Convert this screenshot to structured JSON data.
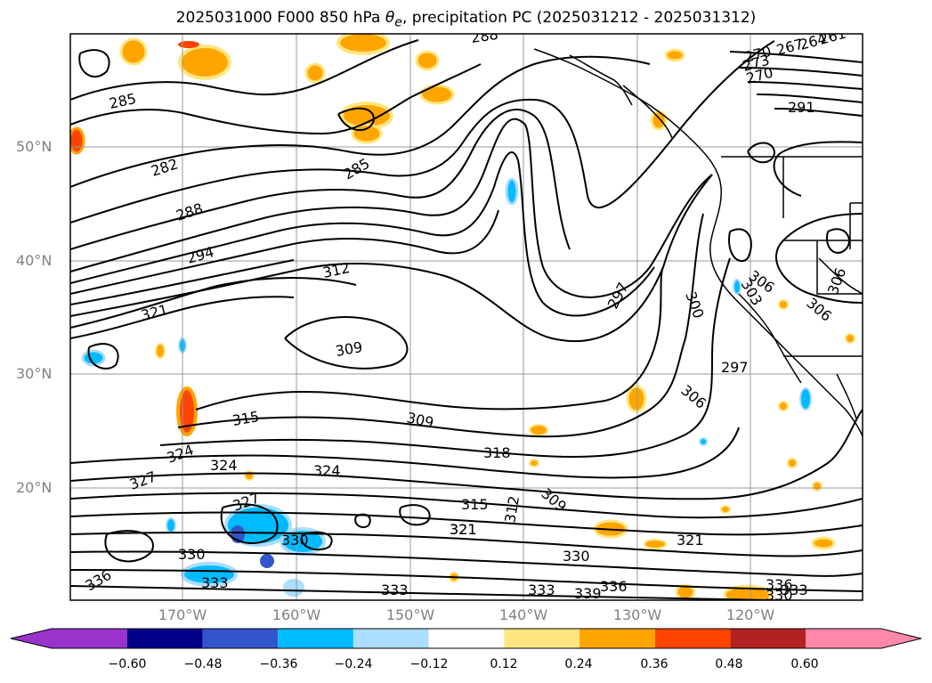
{
  "title_main": "2025031000 F000 850 hPa ",
  "title_symbol": "θ",
  "title_sub": "e",
  "title_rest": ", precipitation PC (2025031212 - 2025031312)",
  "lat_labels": [
    "50°N",
    "40°N",
    "30°N",
    "20°N"
  ],
  "lon_labels": [
    "170°W",
    "160°W",
    "150°W",
    "140°W",
    "130°W",
    "120°W"
  ],
  "contour_labels": [
    "285",
    "282",
    "288",
    "294",
    "285",
    "288",
    "312",
    "321",
    "309",
    "315",
    "309",
    "318",
    "324",
    "324",
    "321",
    "315",
    "321",
    "312",
    "309",
    "330",
    "333",
    "336",
    "333",
    "339",
    "336",
    "321",
    "330",
    "333",
    "297",
    "300",
    "303",
    "306",
    "306",
    "306",
    "297",
    "306",
    "291",
    "267",
    "264",
    "261",
    "273",
    "270",
    "270",
    "327",
    "324",
    "330",
    "327",
    "333",
    "336",
    "330"
  ],
  "colorbar": {
    "ticks": [
      "−0.60",
      "−0.48",
      "−0.36",
      "−0.24",
      "−0.12",
      "0.12",
      "0.24",
      "0.36",
      "0.48",
      "0.60"
    ],
    "colors": [
      "#9933cc",
      "#000088",
      "#3355cc",
      "#00bbff",
      "#aaddff",
      "#ffffff",
      "#ffe680",
      "#ffa500",
      "#ff4400",
      "#b22222",
      "#ff88aa"
    ]
  }
}
